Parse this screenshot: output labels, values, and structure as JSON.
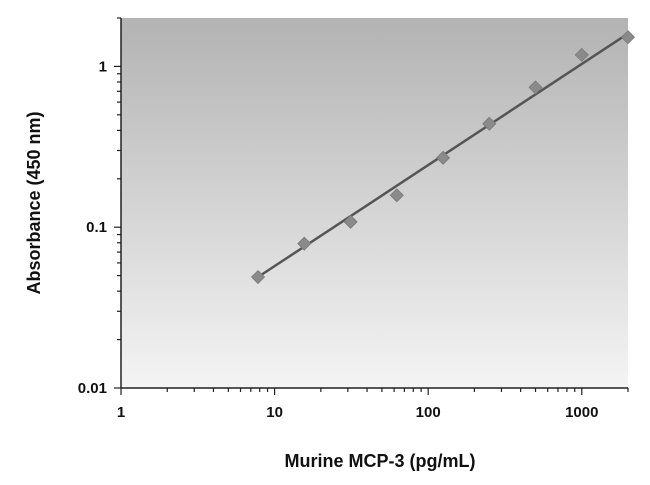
{
  "chart_data": {
    "type": "scatter",
    "title": "",
    "xlabel": "Murine MCP-3 (pg/mL)",
    "ylabel": "Absorbance (450 nm)",
    "x_scale": "log",
    "y_scale": "log",
    "xlim": [
      1,
      2000
    ],
    "ylim": [
      0.01,
      2
    ],
    "x_ticks": [
      1,
      10,
      100,
      1000
    ],
    "x_tick_labels": [
      "1",
      "10",
      "100",
      "1000"
    ],
    "y_ticks": [
      0.01,
      0.1,
      1
    ],
    "y_tick_labels": [
      "0.01",
      "0.1",
      "1"
    ],
    "grid": false,
    "legend": "none",
    "series": [
      {
        "marker": "diamond",
        "color": "#8a8a8a",
        "x": [
          7.8,
          15.6,
          31.25,
          62.5,
          125,
          250,
          500,
          1000,
          2000
        ],
        "y": [
          0.049,
          0.079,
          0.108,
          0.158,
          0.27,
          0.44,
          0.74,
          1.18,
          1.52
        ]
      }
    ],
    "fit_line": {
      "type": "linear-log-log",
      "color": "#555555",
      "x": [
        7.8,
        2000
      ],
      "y": [
        0.049,
        1.6
      ]
    },
    "plot_background": [
      "#b3b3b3",
      "#f4f4f4"
    ]
  }
}
